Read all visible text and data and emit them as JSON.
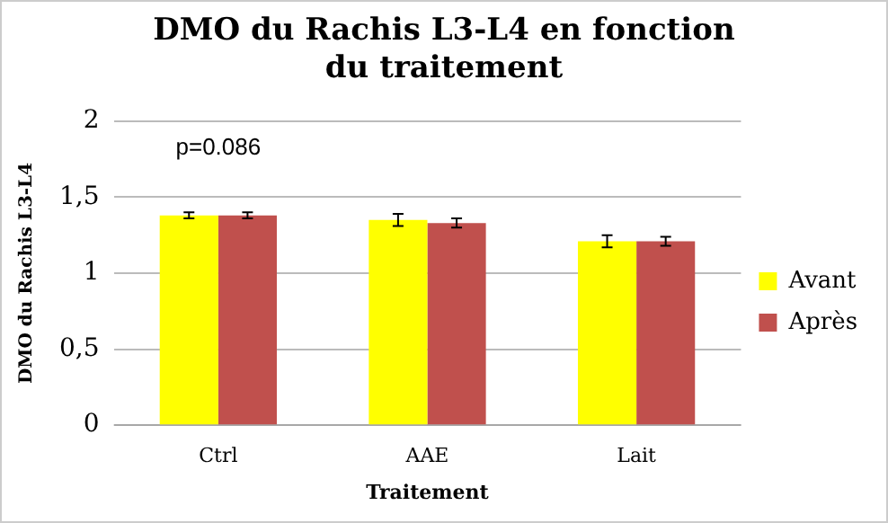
{
  "chart_data": {
    "type": "bar",
    "title": "DMO du Rachis L3-L4 en fonction du traitement",
    "xlabel": "Traitement",
    "ylabel": "DMO du Rachis L3-L4",
    "categories": [
      "Ctrl",
      "AAE",
      "Lait"
    ],
    "series": [
      {
        "name": "Avant",
        "color": "#ffff00",
        "values": [
          1.38,
          1.35,
          1.21
        ],
        "errors": [
          0.02,
          0.04,
          0.04
        ]
      },
      {
        "name": "Après",
        "color": "#c0504d",
        "values": [
          1.38,
          1.33,
          1.21
        ],
        "errors": [
          0.02,
          0.03,
          0.03
        ]
      }
    ],
    "annotations": [
      "p=0.086"
    ],
    "ylim": [
      0,
      2
    ],
    "yticks": [
      {
        "value": 0,
        "label": "0"
      },
      {
        "value": 0.5,
        "label": "0,5"
      },
      {
        "value": 1,
        "label": "1"
      },
      {
        "value": 1.5,
        "label": "1,5"
      },
      {
        "value": 2,
        "label": "2"
      }
    ],
    "grid": "y",
    "legend": "right"
  }
}
